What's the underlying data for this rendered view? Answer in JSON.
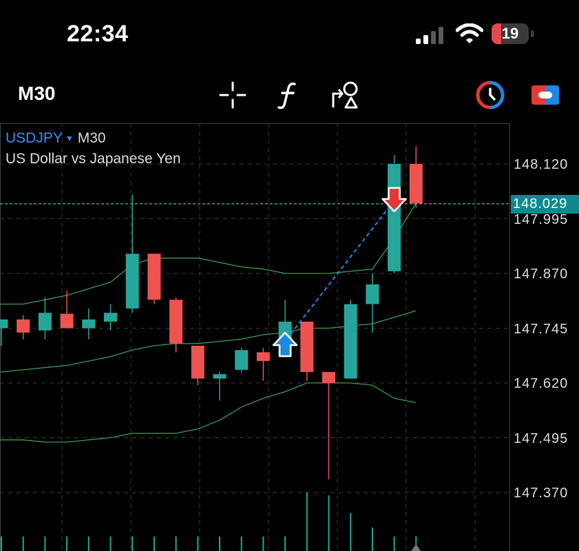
{
  "status_bar": {
    "time": "22:34",
    "battery_level": "19"
  },
  "toolbar": {
    "timeframe": "M30",
    "icons": [
      "crosshair-icon",
      "indicators-icon",
      "objects-icon",
      "timer-icon",
      "trade-toggle-icon"
    ]
  },
  "chart": {
    "symbol": "USDJPY",
    "timeframe": "M30",
    "description": "US Dollar vs Japanese Yen",
    "current_price": "148.029",
    "price_axis": [
      "148.120",
      "147.995",
      "147.870",
      "147.745",
      "147.620",
      "147.495",
      "147.370"
    ],
    "colors": {
      "bull": "#26a69a",
      "bear": "#ef5350",
      "band": "#3f9a55",
      "bid_line": "#4fb9c4",
      "buy_arrow": "#1e88e5",
      "sell_arrow": "#e53935"
    }
  },
  "chart_data": {
    "type": "candlestick",
    "symbol": "USDJPY",
    "timeframe": "M30",
    "ylim": [
      147.33,
      148.26
    ],
    "candles": [
      {
        "open": 147.745,
        "high": 147.76,
        "low": 147.705,
        "close": 147.765
      },
      {
        "open": 147.765,
        "high": 147.775,
        "low": 147.72,
        "close": 147.735
      },
      {
        "open": 147.74,
        "high": 147.815,
        "low": 147.72,
        "close": 147.78
      },
      {
        "open": 147.778,
        "high": 147.83,
        "low": 147.745,
        "close": 147.745
      },
      {
        "open": 147.745,
        "high": 147.79,
        "low": 147.72,
        "close": 147.765
      },
      {
        "open": 147.76,
        "high": 147.8,
        "low": 147.74,
        "close": 147.78
      },
      {
        "open": 147.79,
        "high": 148.05,
        "low": 147.78,
        "close": 147.915
      },
      {
        "open": 147.915,
        "high": 147.915,
        "low": 147.8,
        "close": 147.81
      },
      {
        "open": 147.81,
        "high": 147.815,
        "low": 147.69,
        "close": 147.71
      },
      {
        "open": 147.705,
        "high": 147.705,
        "low": 147.615,
        "close": 147.63
      },
      {
        "open": 147.63,
        "high": 147.645,
        "low": 147.58,
        "close": 147.64
      },
      {
        "open": 147.65,
        "high": 147.7,
        "low": 147.645,
        "close": 147.695
      },
      {
        "open": 147.69,
        "high": 147.7,
        "low": 147.625,
        "close": 147.67
      },
      {
        "open": 147.68,
        "high": 147.81,
        "low": 147.68,
        "close": 147.76
      },
      {
        "open": 147.76,
        "high": 147.76,
        "low": 147.625,
        "close": 147.645
      },
      {
        "open": 147.645,
        "high": 147.645,
        "low": 147.4,
        "close": 147.62
      },
      {
        "open": 147.63,
        "high": 147.81,
        "low": 147.63,
        "close": 147.8
      },
      {
        "open": 147.8,
        "high": 147.87,
        "low": 147.735,
        "close": 147.845
      },
      {
        "open": 147.875,
        "high": 148.14,
        "low": 147.87,
        "close": 148.12
      },
      {
        "open": 148.12,
        "high": 148.16,
        "low": 148.02,
        "close": 148.03
      }
    ],
    "bands": {
      "upper": [
        147.8,
        147.8,
        147.81,
        147.82,
        147.835,
        147.85,
        147.89,
        147.905,
        147.905,
        147.905,
        147.895,
        147.885,
        147.88,
        147.87,
        147.87,
        147.87,
        147.875,
        147.88,
        147.95,
        148.03
      ],
      "middle": [
        147.645,
        147.65,
        147.655,
        147.66,
        147.67,
        147.68,
        147.695,
        147.705,
        147.71,
        147.71,
        147.715,
        147.72,
        147.73,
        147.735,
        147.745,
        147.745,
        147.75,
        147.755,
        147.77,
        147.785
      ],
      "lower": [
        147.49,
        147.49,
        147.485,
        147.485,
        147.49,
        147.495,
        147.505,
        147.505,
        147.505,
        147.515,
        147.535,
        147.565,
        147.585,
        147.6,
        147.62,
        147.62,
        147.62,
        147.615,
        147.585,
        147.575
      ]
    },
    "volumes": [
      0.25,
      0.25,
      0.25,
      0.25,
      0.25,
      0.25,
      0.25,
      0.25,
      0.25,
      0.25,
      0.25,
      0.25,
      0.25,
      0.25,
      1.0,
      0.95,
      0.65,
      0.4,
      0.25,
      0.25
    ],
    "bid": 148.029,
    "buy_signal": {
      "candle": 13,
      "price": 147.7
    },
    "sell_signal": {
      "candle": 18,
      "price": 148.04
    }
  }
}
